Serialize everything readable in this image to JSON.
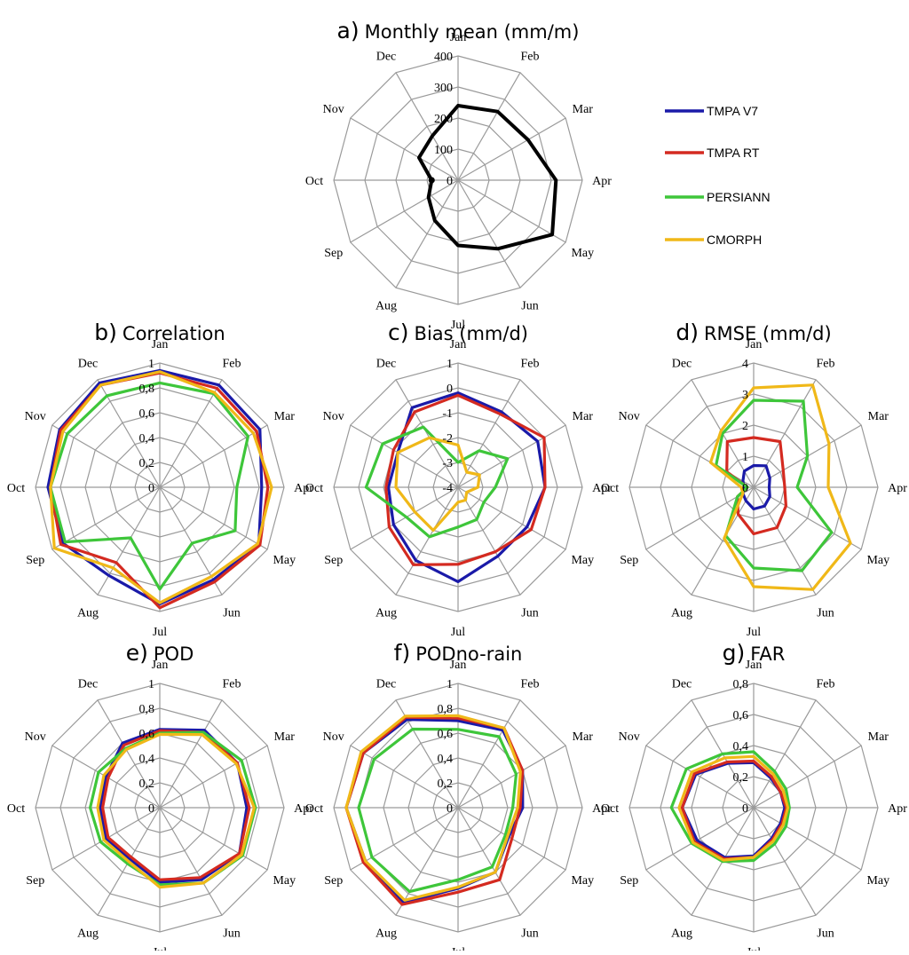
{
  "colors": {
    "TMPA V7": "#1a1aa8",
    "TMPA RT": "#d42a20",
    "PERSIANN": "#3ec63a",
    "CMORPH": "#f0b818",
    "Observed": "#000000",
    "grid": "#9a9a9a"
  },
  "legend": [
    "TMPA V7",
    "TMPA RT",
    "PERSIANN",
    "CMORPH"
  ],
  "chart_data": [
    {
      "id": "a",
      "type": "radar",
      "letter": "a)",
      "title": "Monthly mean (mm/m)",
      "categories": [
        "Jan",
        "Feb",
        "Mar",
        "Apr",
        "May",
        "Jun",
        "Jul",
        "Aug",
        "Sep",
        "Oct",
        "Nov",
        "Dec"
      ],
      "rlim": [
        0,
        400
      ],
      "ticks": [
        "0",
        "100",
        "200",
        "300",
        "400"
      ],
      "tick_values": [
        0,
        100,
        200,
        300,
        400
      ],
      "series": [
        {
          "name": "Observed",
          "values": [
            240,
            255,
            260,
            315,
            350,
            255,
            210,
            150,
            110,
            85,
            145,
            165
          ]
        }
      ]
    },
    {
      "id": "b",
      "type": "radar",
      "letter": "b)",
      "title": "Correlation",
      "categories": [
        "Jan",
        "Feb",
        "Mar",
        "Apr",
        "May",
        "Jun",
        "Jul",
        "Aug",
        "Sep",
        "Oct",
        "Nov",
        "Dec"
      ],
      "rlim": [
        0,
        1
      ],
      "ticks": [
        "0",
        "0,2",
        "0,4",
        "0,6",
        "0,8",
        "1"
      ],
      "tick_values": [
        0,
        0.2,
        0.4,
        0.6,
        0.8,
        1
      ],
      "series": [
        {
          "name": "TMPA V7",
          "values": [
            0.94,
            0.95,
            0.93,
            0.82,
            0.92,
            0.86,
            0.94,
            0.82,
            0.9,
            0.9,
            0.93,
            0.97
          ]
        },
        {
          "name": "TMPA RT",
          "values": [
            0.92,
            0.92,
            0.9,
            0.87,
            0.93,
            0.88,
            0.97,
            0.7,
            0.92,
            0.88,
            0.92,
            0.95
          ]
        },
        {
          "name": "PERSIANN",
          "values": [
            0.84,
            0.87,
            0.82,
            0.62,
            0.7,
            0.52,
            0.82,
            0.47,
            0.88,
            0.88,
            0.86,
            0.85
          ]
        },
        {
          "name": "CMORPH",
          "values": [
            0.93,
            0.88,
            0.87,
            0.9,
            0.91,
            0.83,
            0.93,
            0.75,
            0.98,
            0.88,
            0.9,
            0.95
          ]
        }
      ]
    },
    {
      "id": "c",
      "type": "radar",
      "letter": "c)",
      "title": "Bias (mm/d)",
      "categories": [
        "Jan",
        "Feb",
        "Mar",
        "Apr",
        "May",
        "Jun",
        "Jul",
        "Aug",
        "Sep",
        "Oct",
        "Nov",
        "Dec"
      ],
      "rlim": [
        -4,
        1
      ],
      "ticks": [
        "-4",
        "-3",
        "-2",
        "-1",
        "0",
        "1"
      ],
      "tick_values": [
        -4,
        -3,
        -2,
        -1,
        0,
        1
      ],
      "series": [
        {
          "name": "TMPA V7",
          "values": [
            -0.2,
            -0.5,
            -0.3,
            -0.5,
            -0.8,
            -0.8,
            -0.2,
            -0.6,
            -1.0,
            -1.2,
            -1.2,
            -0.3
          ]
        },
        {
          "name": "TMPA RT",
          "values": [
            -0.3,
            -0.6,
            0.0,
            -0.5,
            -0.6,
            -1.0,
            -0.9,
            -0.4,
            -0.8,
            -1.1,
            -1.0,
            -0.5
          ]
        },
        {
          "name": "PERSIANN",
          "values": [
            -3.0,
            -2.3,
            -1.7,
            -2.5,
            -2.8,
            -2.5,
            -2.4,
            -1.7,
            -1.6,
            -0.3,
            -0.5,
            -1.2
          ]
        },
        {
          "name": "CMORPH",
          "values": [
            -2.3,
            -3.3,
            -3.0,
            -3.2,
            -3.6,
            -3.4,
            -3.4,
            -2.0,
            -2.0,
            -1.5,
            -1.2,
            -1.7
          ]
        }
      ]
    },
    {
      "id": "d",
      "type": "radar",
      "letter": "d)",
      "title": "RMSE (mm/d)",
      "categories": [
        "Jan",
        "Feb",
        "Mar",
        "Apr",
        "May",
        "Jun",
        "Jul",
        "Aug",
        "Sep",
        "Oct",
        "Nov",
        "Dec"
      ],
      "rlim": [
        0,
        4
      ],
      "ticks": [
        "0",
        "1",
        "2",
        "3",
        "4"
      ],
      "tick_values": [
        0,
        1,
        2,
        3,
        4
      ],
      "series": [
        {
          "name": "TMPA V7",
          "values": [
            0.7,
            0.8,
            0.6,
            0.5,
            0.6,
            0.7,
            0.7,
            0.5,
            0.4,
            0.3,
            0.4,
            0.6
          ]
        },
        {
          "name": "TMPA RT",
          "values": [
            1.6,
            1.7,
            1.1,
            1.0,
            1.2,
            1.5,
            1.5,
            1.0,
            0.6,
            0.2,
            1.0,
            1.7
          ]
        },
        {
          "name": "PERSIANN",
          "values": [
            2.8,
            3.2,
            2.0,
            1.4,
            2.9,
            3.1,
            2.6,
            1.8,
            0.6,
            0.2,
            1.4,
            2.0
          ]
        },
        {
          "name": "CMORPH",
          "values": [
            3.2,
            3.8,
            2.8,
            2.4,
            3.6,
            3.8,
            3.2,
            1.9,
            0.4,
            0.4,
            1.6,
            2.1
          ]
        }
      ]
    },
    {
      "id": "e",
      "type": "radar",
      "letter": "e)",
      "title": "POD",
      "categories": [
        "Jan",
        "Feb",
        "Mar",
        "Apr",
        "May",
        "Jun",
        "Jul",
        "Aug",
        "Sep",
        "Oct",
        "Nov",
        "Dec"
      ],
      "rlim": [
        0,
        1
      ],
      "ticks": [
        "0",
        "0,2",
        "0,4",
        "0,6",
        "0,8",
        "1"
      ],
      "tick_values": [
        0,
        0.2,
        0.4,
        0.6,
        0.8,
        1
      ],
      "series": [
        {
          "name": "TMPA V7",
          "values": [
            0.63,
            0.72,
            0.72,
            0.7,
            0.74,
            0.67,
            0.6,
            0.48,
            0.5,
            0.48,
            0.5,
            0.6
          ]
        },
        {
          "name": "TMPA RT",
          "values": [
            0.62,
            0.7,
            0.72,
            0.72,
            0.74,
            0.65,
            0.58,
            0.46,
            0.48,
            0.46,
            0.48,
            0.58
          ]
        },
        {
          "name": "PERSIANN",
          "values": [
            0.6,
            0.7,
            0.76,
            0.77,
            0.77,
            0.7,
            0.62,
            0.52,
            0.55,
            0.56,
            0.57,
            0.55
          ]
        },
        {
          "name": "CMORPH",
          "values": [
            0.59,
            0.68,
            0.71,
            0.76,
            0.76,
            0.7,
            0.64,
            0.5,
            0.52,
            0.5,
            0.52,
            0.54
          ]
        }
      ]
    },
    {
      "id": "f",
      "type": "radar",
      "letter": "f)",
      "title": "PODno-rain",
      "categories": [
        "Jan",
        "Feb",
        "Mar",
        "Apr",
        "May",
        "Jun",
        "Jul",
        "Aug",
        "Sep",
        "Oct",
        "Nov",
        "Dec"
      ],
      "rlim": [
        0,
        1
      ],
      "ticks": [
        "0",
        "0,2",
        "0,4",
        "0,6",
        "0,8",
        "1"
      ],
      "tick_values": [
        0,
        0.2,
        0.4,
        0.6,
        0.8,
        1
      ],
      "series": [
        {
          "name": "TMPA V7",
          "values": [
            0.7,
            0.72,
            0.6,
            0.52,
            0.47,
            0.6,
            0.65,
            0.88,
            0.86,
            0.9,
            0.88,
            0.82
          ]
        },
        {
          "name": "TMPA RT",
          "values": [
            0.72,
            0.74,
            0.6,
            0.5,
            0.5,
            0.67,
            0.68,
            0.9,
            0.88,
            0.9,
            0.88,
            0.84
          ]
        },
        {
          "name": "PERSIANN",
          "values": [
            0.63,
            0.66,
            0.54,
            0.44,
            0.44,
            0.55,
            0.58,
            0.78,
            0.8,
            0.8,
            0.78,
            0.73
          ]
        },
        {
          "name": "CMORPH",
          "values": [
            0.74,
            0.74,
            0.58,
            0.48,
            0.46,
            0.6,
            0.64,
            0.86,
            0.86,
            0.9,
            0.9,
            0.85
          ]
        }
      ]
    },
    {
      "id": "g",
      "type": "radar",
      "letter": "g)",
      "title": "FAR",
      "categories": [
        "Jan",
        "Feb",
        "Mar",
        "Apr",
        "May",
        "Jun",
        "Jul",
        "Aug",
        "Sep",
        "Oct",
        "Nov",
        "Dec"
      ],
      "rlim": [
        0,
        0.8
      ],
      "ticks": [
        "0",
        "0,2",
        "0,4",
        "0,6",
        "0,8"
      ],
      "tick_values": [
        0,
        0.2,
        0.4,
        0.6,
        0.8
      ],
      "series": [
        {
          "name": "TMPA V7",
          "values": [
            0.29,
            0.22,
            0.2,
            0.2,
            0.2,
            0.23,
            0.31,
            0.37,
            0.42,
            0.46,
            0.43,
            0.33
          ]
        },
        {
          "name": "TMPA RT",
          "values": [
            0.3,
            0.23,
            0.2,
            0.21,
            0.21,
            0.24,
            0.32,
            0.38,
            0.44,
            0.46,
            0.44,
            0.34
          ]
        },
        {
          "name": "PERSIANN",
          "values": [
            0.36,
            0.27,
            0.24,
            0.23,
            0.24,
            0.27,
            0.34,
            0.4,
            0.46,
            0.53,
            0.5,
            0.4
          ]
        },
        {
          "name": "CMORPH",
          "values": [
            0.33,
            0.25,
            0.22,
            0.22,
            0.22,
            0.25,
            0.32,
            0.39,
            0.45,
            0.48,
            0.46,
            0.37
          ]
        }
      ]
    }
  ]
}
